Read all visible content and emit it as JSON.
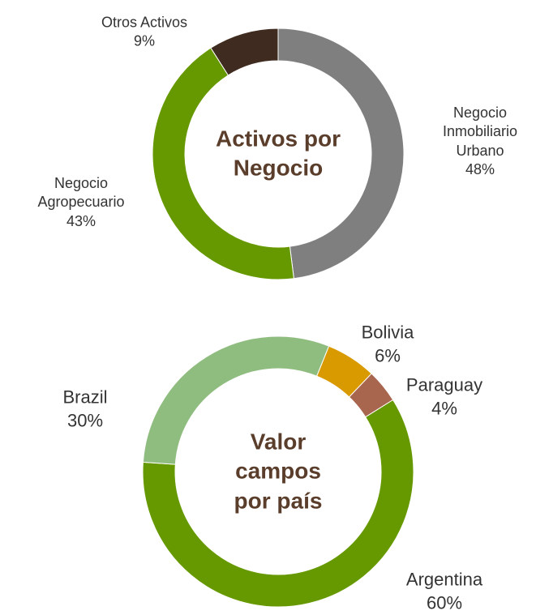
{
  "chart_data": [
    {
      "type": "donut",
      "title": "Activos por Negocio",
      "categories": [
        "Negocio Inmobiliario Urbano",
        "Negocio Agropecuario",
        "Otros Activos"
      ],
      "values": [
        48,
        43,
        9
      ],
      "value_labels": [
        "48%",
        "43%",
        "9%"
      ],
      "colors": [
        "#7f7f7f",
        "#669900",
        "#3f2b1f"
      ]
    },
    {
      "type": "donut",
      "title": "Valor campos por país",
      "categories": [
        "Bolivia",
        "Paraguay",
        "Argentina",
        "Brazil"
      ],
      "values": [
        6,
        4,
        60,
        30
      ],
      "value_labels": [
        "6%",
        "4%",
        "60%",
        "30%"
      ],
      "colors": [
        "#d99a00",
        "#a9664f",
        "#669900",
        "#8fbc7f"
      ]
    }
  ]
}
